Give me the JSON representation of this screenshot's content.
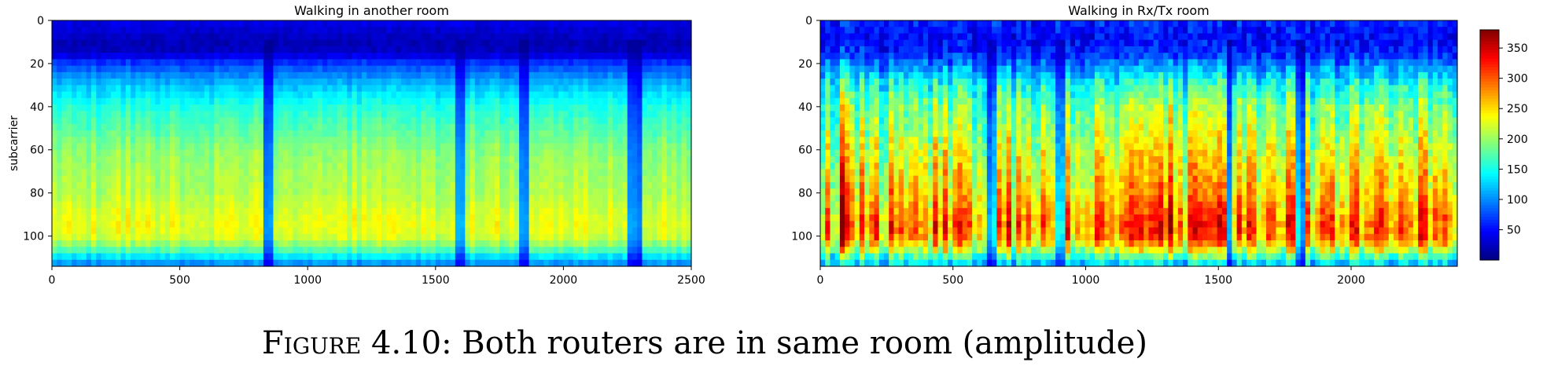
{
  "chart_data": [
    {
      "type": "heatmap",
      "title": "Walking in another room",
      "xlabel": "",
      "ylabel": "subcarrier",
      "xlim": [
        0,
        2500
      ],
      "ylim": [
        114,
        0
      ],
      "xticks": [
        0,
        500,
        1000,
        1500,
        2000,
        2500
      ],
      "yticks": [
        0,
        20,
        40,
        60,
        80,
        100
      ],
      "profile_rows": [
        0,
        5,
        10,
        15,
        20,
        30,
        40,
        50,
        60,
        70,
        80,
        90,
        95,
        100,
        105,
        110,
        114
      ],
      "profile_values": [
        40,
        30,
        20,
        25,
        70,
        120,
        155,
        175,
        195,
        205,
        210,
        225,
        230,
        225,
        190,
        130,
        90
      ],
      "dark_columns": [
        850,
        1600,
        1850,
        2260,
        2290
      ],
      "bright_columns": [
        1600
      ],
      "variability": 15
    },
    {
      "type": "heatmap",
      "title": "Walking in Rx/Tx room",
      "xlabel": "",
      "ylabel": "",
      "xlim": [
        0,
        2400
      ],
      "ylim": [
        114,
        0
      ],
      "xticks": [
        0,
        500,
        1000,
        1500,
        2000
      ],
      "yticks": [
        0,
        20,
        40,
        60,
        80,
        100
      ],
      "profile_rows": [
        0,
        5,
        10,
        15,
        20,
        30,
        40,
        50,
        60,
        70,
        80,
        90,
        95,
        100,
        105,
        110,
        114
      ],
      "profile_values": [
        60,
        50,
        50,
        60,
        90,
        150,
        185,
        200,
        220,
        235,
        250,
        275,
        285,
        280,
        235,
        160,
        110
      ],
      "dark_columns": [
        650,
        900,
        1540,
        1800,
        1810
      ],
      "bright_columns": [
        100,
        700,
        920,
        1180,
        1300,
        1700,
        1880
      ],
      "variability": 45
    }
  ],
  "colorbar": {
    "colormap": "jet",
    "range": [
      0,
      380
    ],
    "ticks": [
      50,
      100,
      150,
      200,
      250,
      300,
      350
    ]
  },
  "caption": {
    "label_prefix": "Figure",
    "label_number": "4.10:",
    "text": "Both routers are in same room (amplitude)"
  }
}
